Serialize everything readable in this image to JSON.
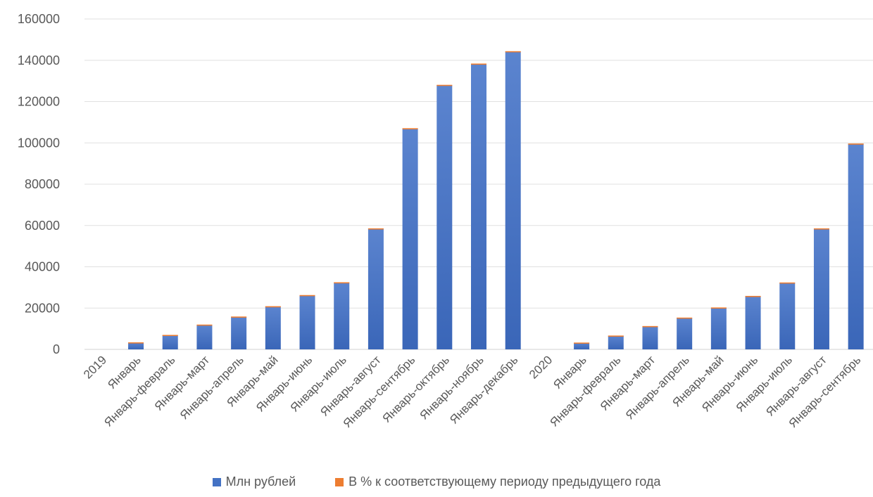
{
  "chart_data": {
    "type": "bar",
    "stacked": true,
    "categories": [
      "2019",
      "Январь",
      "Январь-февраль",
      "Январь-март",
      "Январь-апрель",
      "Январь-май",
      "Январь-июнь",
      "Январь-июль",
      "Январь-август",
      "Январь-сентябрь",
      "Январь-октябрь",
      "Январь-ноябрь",
      "Январь-декабрь",
      "2020",
      "Январь",
      "Январь-февраль",
      "Январь-март",
      "Январь-апрель",
      "Январь-май",
      "Январь-июнь",
      "Январь-июль",
      "Январь-август",
      "Январь-сентябрь"
    ],
    "series": [
      {
        "name": "Млн рублей",
        "color": "#4472C4",
        "values": [
          0,
          3300,
          6900,
          11900,
          15800,
          20800,
          26200,
          32400,
          58500,
          107000,
          128000,
          138300,
          144300,
          0,
          3200,
          6600,
          11200,
          15300,
          20200,
          25800,
          32300,
          58500,
          99600
        ]
      },
      {
        "name": "В % к соответствующему периоду предыдущего года",
        "color": "#ED7D31",
        "values": [
          0,
          104,
          106,
          107,
          106,
          106,
          105,
          104,
          106,
          108,
          106,
          106,
          105,
          0,
          97,
          96,
          94,
          97,
          97,
          98,
          100,
          100,
          93
        ]
      }
    ],
    "yticks": [
      "0",
      "20000",
      "40000",
      "60000",
      "80000",
      "100000",
      "120000",
      "140000",
      "160000"
    ],
    "ylim": [
      0,
      160000
    ],
    "grid": true,
    "legend_position": "bottom"
  }
}
